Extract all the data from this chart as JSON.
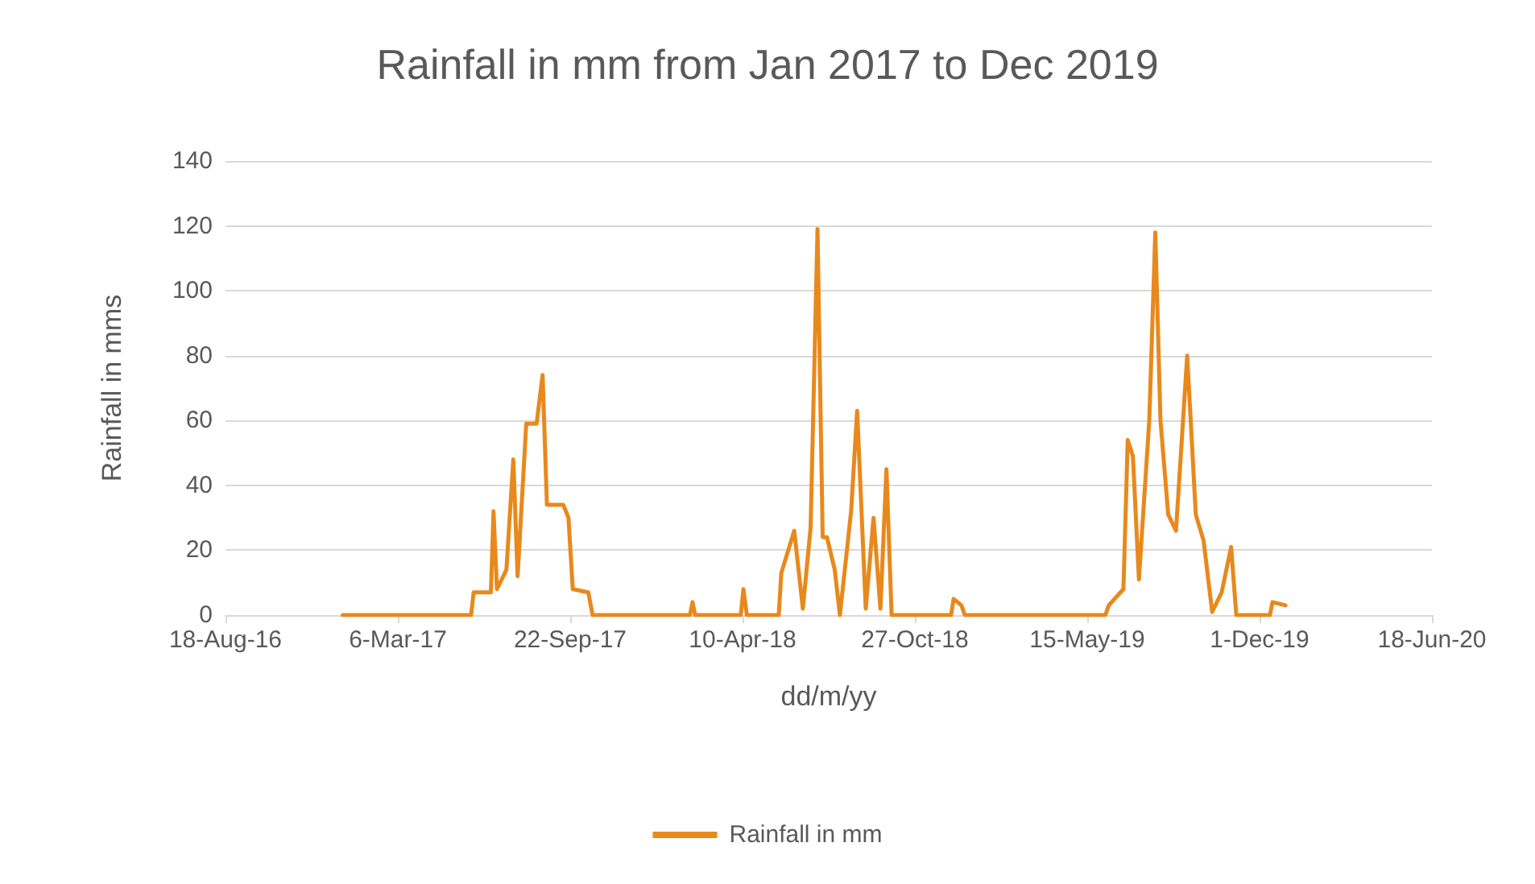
{
  "chart_data": {
    "type": "line",
    "title": "Rainfall in mm from Jan 2017 to Dec 2019",
    "xlabel": "dd/m/yy",
    "ylabel": "Rainfall in mms",
    "x": [
      "2017-01-01",
      "2017-05-30",
      "2017-06-02",
      "2017-06-22",
      "2017-06-25",
      "2017-06-29",
      "2017-07-10",
      "2017-07-18",
      "2017-07-23",
      "2017-08-02",
      "2017-08-14",
      "2017-08-21",
      "2017-08-26",
      "2017-09-14",
      "2017-09-20",
      "2017-09-25",
      "2017-10-13",
      "2017-10-18",
      "2018-02-08",
      "2018-02-11",
      "2018-02-14",
      "2018-04-08",
      "2018-04-11",
      "2018-04-15",
      "2018-05-22",
      "2018-05-25",
      "2018-06-09",
      "2018-06-19",
      "2018-06-28",
      "2018-07-06",
      "2018-07-12",
      "2018-07-17",
      "2018-07-26",
      "2018-08-01",
      "2018-08-14",
      "2018-08-21",
      "2018-08-31",
      "2018-09-09",
      "2018-09-17",
      "2018-09-24",
      "2018-09-30",
      "2018-12-08",
      "2018-12-11",
      "2018-12-20",
      "2018-12-24",
      "2019-06-05",
      "2019-06-09",
      "2019-06-26",
      "2019-07-01",
      "2019-07-07",
      "2019-07-14",
      "2019-07-26",
      "2019-08-02",
      "2019-08-08",
      "2019-08-17",
      "2019-08-26",
      "2019-09-08",
      "2019-09-18",
      "2019-09-27",
      "2019-10-07",
      "2019-10-18",
      "2019-10-29",
      "2019-11-04",
      "2019-12-13",
      "2019-12-16",
      "2019-12-31"
    ],
    "series": [
      {
        "name": "Rainfall in mm",
        "color": "#e8891c",
        "values": [
          0,
          0,
          7,
          7,
          32,
          8,
          14,
          48,
          12,
          59,
          59,
          74,
          34,
          34,
          30,
          8,
          7,
          0,
          0,
          4,
          0,
          0,
          8,
          0,
          0,
          13,
          26,
          2,
          27,
          119,
          24,
          24,
          14,
          0,
          32,
          63,
          2,
          30,
          2,
          45,
          0,
          0,
          5,
          3,
          0,
          0,
          3,
          8,
          54,
          49,
          11,
          60,
          118,
          60,
          31,
          26,
          80,
          31,
          23,
          1,
          7,
          21,
          0,
          0,
          4,
          3
        ]
      }
    ],
    "xlim": [
      "2016-08-18",
      "2020-06-18"
    ],
    "xticks": [
      {
        "value": "2016-08-18",
        "label": "18-Aug-16"
      },
      {
        "value": "2017-03-06",
        "label": "6-Mar-17"
      },
      {
        "value": "2017-09-22",
        "label": "22-Sep-17"
      },
      {
        "value": "2018-04-10",
        "label": "10-Apr-18"
      },
      {
        "value": "2018-10-27",
        "label": "27-Oct-18"
      },
      {
        "value": "2019-05-15",
        "label": "15-May-19"
      },
      {
        "value": "2019-12-01",
        "label": "1-Dec-19"
      },
      {
        "value": "2020-06-18",
        "label": "18-Jun-20"
      }
    ],
    "ylim": [
      0,
      140
    ],
    "yticks": [
      0,
      20,
      40,
      60,
      80,
      100,
      120,
      140
    ],
    "grid": "y",
    "legend": "bottom",
    "marker": "none",
    "line_style": "solid"
  }
}
